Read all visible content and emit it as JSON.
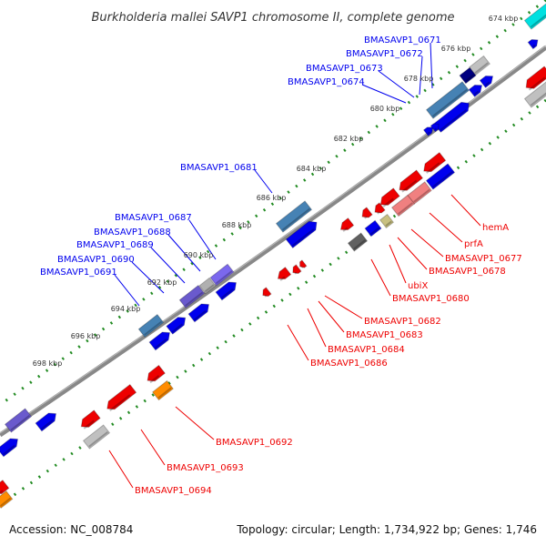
{
  "title": "Burkholderia mallei SAVP1 chromosome II, complete genome",
  "kbp_labels": [
    "674 kbp",
    "676 kbp",
    "678 kbp",
    "680 kbp",
    "682 kbp",
    "684 kbp",
    "686 kbp",
    "688 kbp",
    "690 kbp",
    "692 kbp",
    "694 kbp",
    "696 kbp",
    "698 kbp"
  ],
  "forward_genes": [
    "BMASAVP1_0671",
    "BMASAVP1_0672",
    "BMASAVP1_0673",
    "BMASAVP1_0674",
    "BMASAVP1_0681",
    "BMASAVP1_0687",
    "BMASAVP1_0688",
    "BMASAVP1_0689",
    "BMASAVP1_0690",
    "BMASAVP1_0691"
  ],
  "reverse_genes": [
    "hemA",
    "prfA",
    "BMASAVP1_0677",
    "BMASAVP1_0678",
    "ubiX",
    "BMASAVP1_0680",
    "BMASAVP1_0682",
    "BMASAVP1_0683",
    "BMASAVP1_0684",
    "BMASAVP1_0686",
    "BMASAVP1_0692",
    "BMASAVP1_0693",
    "BMASAVP1_0694"
  ],
  "footer": {
    "accession": "Accession: NC_008784",
    "summary": "Topology: circular; Length: 1,734,922 bp; Genes: 1,746"
  },
  "colors": {
    "forward": "#0000ee",
    "reverse": "#ee0000",
    "backbone": "#888888",
    "ticks": "#228b22"
  }
}
